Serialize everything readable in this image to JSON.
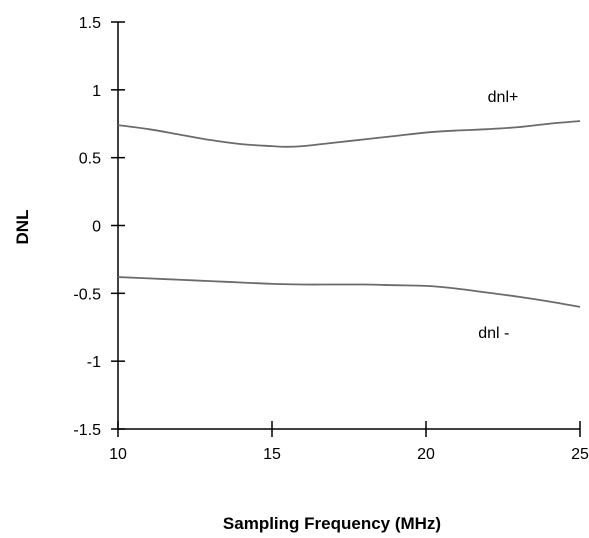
{
  "chart_data": {
    "type": "line",
    "title": "",
    "xlabel": "Sampling Frequency (MHz)",
    "ylabel": "DNL",
    "xlim": [
      10,
      25
    ],
    "ylim": [
      -1.5,
      1.5
    ],
    "x_ticks": [
      "10",
      "15",
      "20",
      "25"
    ],
    "y_ticks": [
      "1.5",
      "1",
      "0.5",
      "0",
      "-0.5",
      "-1",
      "-1.5"
    ],
    "grid": false,
    "legend": "none",
    "line_color": "#6b6b6b",
    "series": [
      {
        "name": "dnl+",
        "x": [
          10,
          11,
          12,
          13,
          14,
          15,
          15.5,
          16,
          17,
          18,
          19,
          20,
          21,
          22,
          23,
          24,
          25
        ],
        "values": [
          0.74,
          0.71,
          0.67,
          0.63,
          0.6,
          0.585,
          0.58,
          0.585,
          0.61,
          0.635,
          0.66,
          0.685,
          0.7,
          0.71,
          0.725,
          0.75,
          0.77
        ]
      },
      {
        "name": "dnl -",
        "x": [
          10,
          11,
          12,
          13,
          14,
          15,
          16,
          17,
          18,
          19,
          20,
          21,
          22,
          23,
          24,
          25
        ],
        "values": [
          -0.38,
          -0.39,
          -0.4,
          -0.41,
          -0.42,
          -0.43,
          -0.435,
          -0.435,
          -0.435,
          -0.44,
          -0.445,
          -0.465,
          -0.495,
          -0.525,
          -0.56,
          -0.6
        ]
      }
    ]
  }
}
